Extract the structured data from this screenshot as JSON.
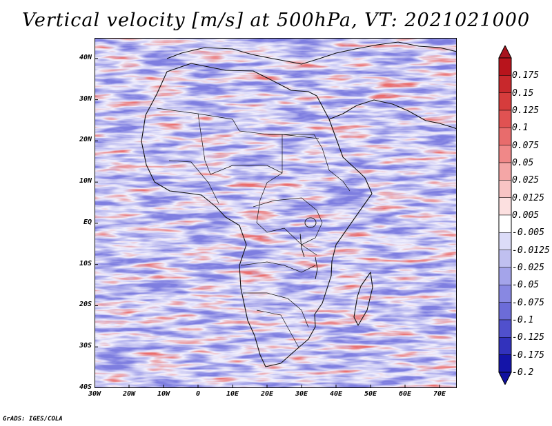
{
  "title": "Vertical velocity [m/s] at 500hPa, VT: 2021021000",
  "credit": "GrADS: IGES/COLA",
  "map": {
    "lon_range": [
      -30,
      75
    ],
    "lat_range": [
      -40,
      45
    ],
    "lat_ticks": [
      {
        "value": 40,
        "label": "40N"
      },
      {
        "value": 30,
        "label": "30N"
      },
      {
        "value": 20,
        "label": "20N"
      },
      {
        "value": 10,
        "label": "10N"
      },
      {
        "value": 0,
        "label": "EQ"
      },
      {
        "value": -10,
        "label": "10S"
      },
      {
        "value": -20,
        "label": "20S"
      },
      {
        "value": -30,
        "label": "30S"
      },
      {
        "value": -40,
        "label": "40S"
      }
    ],
    "lon_ticks": [
      {
        "value": -30,
        "label": "30W"
      },
      {
        "value": -20,
        "label": "20W"
      },
      {
        "value": -10,
        "label": "10W"
      },
      {
        "value": 0,
        "label": "0"
      },
      {
        "value": 10,
        "label": "10E"
      },
      {
        "value": 20,
        "label": "20E"
      },
      {
        "value": 30,
        "label": "30E"
      },
      {
        "value": 40,
        "label": "40E"
      },
      {
        "value": 50,
        "label": "50E"
      },
      {
        "value": 60,
        "label": "60E"
      },
      {
        "value": 70,
        "label": "70E"
      }
    ]
  },
  "colorbar": {
    "levels": [
      {
        "label": "0.175",
        "color": "#b8141c"
      },
      {
        "label": "0.15",
        "color": "#c8282c"
      },
      {
        "label": "0.125",
        "color": "#d63c3c"
      },
      {
        "label": "0.1",
        "color": "#e05252"
      },
      {
        "label": "0.075",
        "color": "#e86c6c"
      },
      {
        "label": "0.05",
        "color": "#f08888"
      },
      {
        "label": "0.025",
        "color": "#f4a6a6"
      },
      {
        "label": "0.0125",
        "color": "#f8c4c4"
      },
      {
        "label": "0.005",
        "color": "#fce0e0"
      },
      {
        "label": "-0.005",
        "color": "#ffffff"
      },
      {
        "label": "-0.0125",
        "color": "#dcdcf8"
      },
      {
        "label": "-0.025",
        "color": "#c0c0f0"
      },
      {
        "label": "-0.05",
        "color": "#a4a4ea"
      },
      {
        "label": "-0.075",
        "color": "#8888e2"
      },
      {
        "label": "-0.1",
        "color": "#6c6cd8"
      },
      {
        "label": "-0.125",
        "color": "#5050cc"
      },
      {
        "label": "-0.175",
        "color": "#3232bc"
      },
      {
        "label": "-0.2",
        "color": "#1414a8"
      }
    ],
    "top_color": "#a8141e",
    "bottom_color": "#1010a0"
  }
}
